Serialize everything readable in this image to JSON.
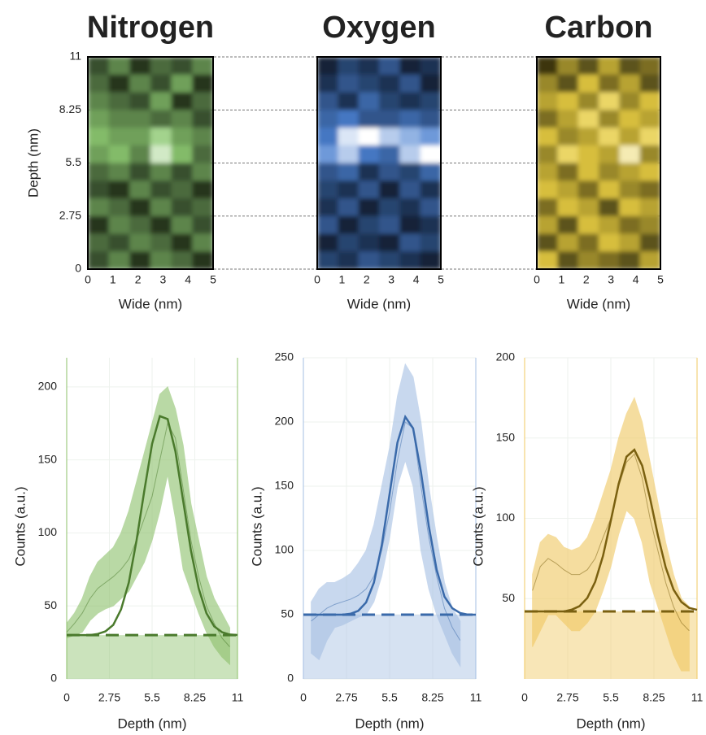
{
  "chart_data": [
    {
      "type": "heatmap",
      "title": "Nitrogen",
      "color": "#8cc870",
      "title_color": "#7ab55c",
      "xlabel": "Wide (nm)",
      "ylabel": "Depth (nm)",
      "xlim": [
        0,
        5
      ],
      "ylim": [
        0,
        11
      ],
      "xticks": [
        0,
        1,
        2,
        3,
        4,
        5
      ],
      "yticks": [
        0,
        2.75,
        5.5,
        8.25,
        11
      ],
      "z": [
        [
          0.3,
          0.5,
          0.2,
          0.4,
          0.3,
          0.5
        ],
        [
          0.4,
          0.2,
          0.5,
          0.3,
          0.6,
          0.2
        ],
        [
          0.5,
          0.4,
          0.3,
          0.6,
          0.2,
          0.4
        ],
        [
          0.6,
          0.5,
          0.5,
          0.4,
          0.5,
          0.3
        ],
        [
          0.7,
          0.6,
          0.6,
          0.8,
          0.6,
          0.5
        ],
        [
          0.6,
          0.7,
          0.5,
          0.9,
          0.7,
          0.4
        ],
        [
          0.4,
          0.5,
          0.3,
          0.5,
          0.3,
          0.5
        ],
        [
          0.3,
          0.2,
          0.5,
          0.3,
          0.4,
          0.2
        ],
        [
          0.5,
          0.4,
          0.2,
          0.5,
          0.3,
          0.4
        ],
        [
          0.2,
          0.5,
          0.4,
          0.2,
          0.5,
          0.3
        ],
        [
          0.4,
          0.3,
          0.5,
          0.4,
          0.2,
          0.5
        ],
        [
          0.3,
          0.5,
          0.2,
          0.5,
          0.4,
          0.2
        ]
      ]
    },
    {
      "type": "heatmap",
      "title": "Oxygen",
      "color": "#4a80d0",
      "title_color": "#a9c6e8",
      "xlabel": "Wide (nm)",
      "xlim": [
        0,
        5
      ],
      "ylim": [
        0,
        11
      ],
      "xticks": [
        0,
        1,
        2,
        3,
        4,
        5
      ],
      "z": [
        [
          0.2,
          0.4,
          0.3,
          0.5,
          0.2,
          0.3
        ],
        [
          0.3,
          0.5,
          0.4,
          0.3,
          0.5,
          0.2
        ],
        [
          0.5,
          0.3,
          0.6,
          0.4,
          0.3,
          0.4
        ],
        [
          0.6,
          0.7,
          0.5,
          0.5,
          0.6,
          0.5
        ],
        [
          0.7,
          0.95,
          1,
          0.9,
          0.85,
          0.8
        ],
        [
          0.8,
          0.9,
          0.7,
          0.6,
          0.9,
          1
        ],
        [
          0.5,
          0.6,
          0.3,
          0.5,
          0.4,
          0.6
        ],
        [
          0.4,
          0.3,
          0.5,
          0.2,
          0.5,
          0.3
        ],
        [
          0.3,
          0.5,
          0.2,
          0.4,
          0.3,
          0.5
        ],
        [
          0.5,
          0.2,
          0.4,
          0.5,
          0.2,
          0.3
        ],
        [
          0.2,
          0.4,
          0.3,
          0.2,
          0.5,
          0.4
        ],
        [
          0.4,
          0.3,
          0.5,
          0.4,
          0.3,
          0.2
        ]
      ]
    },
    {
      "type": "heatmap",
      "title": "Carbon",
      "color": "#e6cc40",
      "title_color": "#f0c75e",
      "xlabel": "Wide (nm)",
      "xlim": [
        0,
        5
      ],
      "ylim": [
        0,
        11
      ],
      "xticks": [
        0,
        1,
        2,
        3,
        4,
        5
      ],
      "z": [
        [
          0.2,
          0.5,
          0.3,
          0.6,
          0.3,
          0.4
        ],
        [
          0.5,
          0.3,
          0.7,
          0.4,
          0.6,
          0.3
        ],
        [
          0.6,
          0.7,
          0.5,
          0.8,
          0.5,
          0.7
        ],
        [
          0.4,
          0.6,
          0.8,
          0.5,
          0.7,
          0.6
        ],
        [
          0.7,
          0.5,
          0.6,
          0.8,
          0.6,
          0.8
        ],
        [
          0.5,
          0.8,
          0.7,
          0.6,
          0.9,
          0.5
        ],
        [
          0.6,
          0.4,
          0.7,
          0.5,
          0.6,
          0.7
        ],
        [
          0.7,
          0.6,
          0.4,
          0.7,
          0.5,
          0.4
        ],
        [
          0.4,
          0.7,
          0.6,
          0.3,
          0.7,
          0.6
        ],
        [
          0.6,
          0.3,
          0.7,
          0.6,
          0.4,
          0.5
        ],
        [
          0.3,
          0.6,
          0.4,
          0.7,
          0.6,
          0.3
        ],
        [
          0.7,
          0.3,
          0.5,
          0.4,
          0.3,
          0.6
        ]
      ]
    },
    {
      "type": "line",
      "xlabel": "Depth (nm)",
      "ylabel": "Counts (a.u.)",
      "color": "#8cc06a",
      "line_color": "#4a7a2c",
      "xlim": [
        0,
        11
      ],
      "xticks": [
        0,
        2.75,
        5.5,
        8.25,
        11
      ],
      "ylim": [
        0,
        220
      ],
      "yticks": [
        0,
        50,
        100,
        150,
        200
      ],
      "x": [
        0,
        0.5,
        1,
        1.5,
        2,
        2.5,
        3,
        3.5,
        4,
        4.5,
        5,
        5.5,
        6,
        6.5,
        7,
        7.5,
        8,
        8.5,
        9,
        9.5,
        10,
        10.5,
        11
      ],
      "values": [
        32,
        38,
        45,
        55,
        62,
        66,
        70,
        75,
        82,
        95,
        110,
        125,
        150,
        175,
        165,
        130,
        95,
        70,
        50,
        38,
        28,
        22,
        null
      ],
      "upper": [
        38,
        45,
        55,
        70,
        80,
        85,
        90,
        100,
        115,
        135,
        155,
        175,
        195,
        200,
        185,
        160,
        120,
        95,
        70,
        55,
        45,
        35,
        null
      ],
      "lower": [
        28,
        30,
        32,
        40,
        45,
        48,
        50,
        55,
        60,
        70,
        80,
        95,
        115,
        140,
        110,
        75,
        60,
        45,
        32,
        22,
        15,
        10,
        null
      ],
      "fit": [
        30,
        30,
        30,
        30,
        30.8,
        32.6,
        37,
        47.6,
        66,
        95,
        129,
        161,
        180,
        178,
        156,
        122,
        88,
        62,
        45,
        36,
        32,
        30.4,
        30.1
      ],
      "baseline": 30
    },
    {
      "type": "line",
      "xlabel": "Depth (nm)",
      "ylabel": "Counts (a.u.)",
      "color": "#a5bfe3",
      "line_color": "#3a6aaa",
      "xlim": [
        0,
        11
      ],
      "xticks": [
        0,
        2.75,
        5.5,
        8.25,
        11
      ],
      "ylim": [
        0,
        250
      ],
      "yticks": [
        0,
        50,
        100,
        150,
        200,
        250
      ],
      "x": [
        0,
        0.5,
        1,
        1.5,
        2,
        2.5,
        3,
        3.5,
        4,
        4.5,
        5,
        5.5,
        6,
        6.5,
        7,
        7.5,
        8,
        8.5,
        9,
        9.5,
        10,
        10.5,
        11
      ],
      "values": [
        null,
        45,
        50,
        55,
        58,
        60,
        62,
        65,
        70,
        80,
        100,
        130,
        170,
        200,
        195,
        150,
        110,
        80,
        55,
        40,
        30,
        null,
        null
      ],
      "upper": [
        null,
        60,
        70,
        75,
        75,
        78,
        82,
        90,
        100,
        120,
        150,
        180,
        220,
        245,
        235,
        200,
        150,
        110,
        75,
        55,
        45,
        null,
        null
      ],
      "lower": [
        null,
        20,
        15,
        30,
        40,
        42,
        45,
        48,
        50,
        60,
        80,
        110,
        150,
        170,
        150,
        100,
        70,
        50,
        35,
        20,
        10,
        null,
        null
      ],
      "fit": [
        50,
        50,
        50,
        50,
        50,
        50,
        50.7,
        53,
        59.5,
        75,
        104,
        144,
        184,
        204,
        195,
        161,
        119,
        85,
        64,
        55,
        51.3,
        50,
        50
      ],
      "baseline": 50
    },
    {
      "type": "line",
      "xlabel": "Depth (nm)",
      "ylabel": "Counts (a.u.)",
      "color": "#f0c860",
      "line_color": "#7a6010",
      "xlim": [
        0,
        11
      ],
      "xticks": [
        0,
        2.75,
        5.5,
        8.25,
        11
      ],
      "ylim": [
        0,
        200
      ],
      "yticks": [
        50,
        100,
        150,
        200
      ],
      "x": [
        0,
        0.5,
        1,
        1.5,
        2,
        2.5,
        3,
        3.5,
        4,
        4.5,
        5,
        5.5,
        6,
        6.5,
        7,
        7.5,
        8,
        8.5,
        9,
        9.5,
        10,
        10.5,
        11
      ],
      "values": [
        null,
        55,
        70,
        75,
        72,
        68,
        65,
        65,
        68,
        75,
        88,
        100,
        120,
        135,
        140,
        125,
        100,
        80,
        60,
        45,
        35,
        30,
        null
      ],
      "upper": [
        null,
        65,
        85,
        90,
        88,
        82,
        80,
        82,
        88,
        100,
        115,
        130,
        150,
        165,
        175,
        160,
        135,
        110,
        85,
        65,
        50,
        45,
        null
      ],
      "lower": [
        null,
        20,
        30,
        40,
        40,
        35,
        30,
        30,
        35,
        42,
        55,
        70,
        90,
        105,
        100,
        85,
        60,
        45,
        30,
        15,
        5,
        5,
        null
      ],
      "fit": [
        42,
        42,
        42,
        42,
        42,
        42,
        43.1,
        45.3,
        50.4,
        60.4,
        76.6,
        98.6,
        121.5,
        138.4,
        142.7,
        132.8,
        112.6,
        89.4,
        69.4,
        55.6,
        47.9,
        44.2,
        43
      ],
      "baseline": 42
    }
  ]
}
